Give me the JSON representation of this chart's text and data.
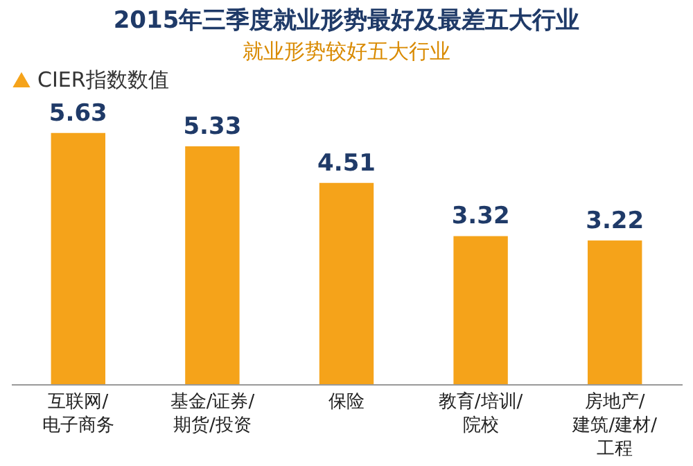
{
  "chart_data": {
    "type": "bar",
    "title": "2015年三季度就业形势最好及最差五大行业",
    "subtitle": "就业形势较好五大行业",
    "categories": [
      "互联网/电子商务",
      "基金/证券/期货/投资",
      "保险",
      "教育/培训/院校",
      "房地产/建筑/建材/工程"
    ],
    "series": [
      {
        "name": "CIER指数数值",
        "color": "#f5a31a",
        "values": [
          5.63,
          5.33,
          4.51,
          3.32,
          3.22
        ]
      }
    ],
    "data_labels": true,
    "legend": "top",
    "grid": false
  }
}
